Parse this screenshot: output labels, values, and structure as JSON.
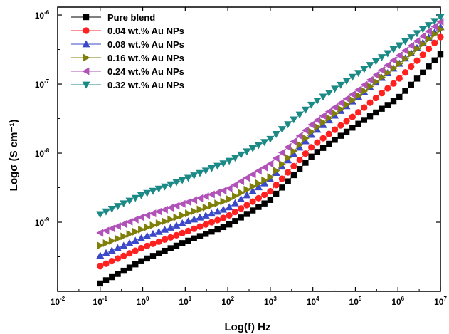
{
  "chart_data": {
    "type": "scatter",
    "xlabel": "Log(f) Hz",
    "ylabel": "Logσ (S cm⁻¹)",
    "x_scale": "log",
    "y_scale": "log",
    "xlim": [
      0.01,
      10000000
    ],
    "ylim": [
      1e-10,
      1.3e-06
    ],
    "x_ticks": [
      {
        "value": 0.01,
        "base": "10",
        "exp": "-2"
      },
      {
        "value": 0.1,
        "base": "10",
        "exp": "-1"
      },
      {
        "value": 1,
        "base": "10",
        "exp": "0"
      },
      {
        "value": 10,
        "base": "10",
        "exp": "1"
      },
      {
        "value": 100,
        "base": "10",
        "exp": "2"
      },
      {
        "value": 1000,
        "base": "10",
        "exp": "3"
      },
      {
        "value": 10000,
        "base": "10",
        "exp": "4"
      },
      {
        "value": 100000,
        "base": "10",
        "exp": "5"
      },
      {
        "value": 1000000,
        "base": "10",
        "exp": "6"
      },
      {
        "value": 10000000,
        "base": "10",
        "exp": "7"
      }
    ],
    "y_ticks": [
      {
        "value": 1e-09,
        "base": "10",
        "exp": "-9"
      },
      {
        "value": 1e-08,
        "base": "10",
        "exp": "-8"
      },
      {
        "value": 1e-07,
        "base": "10",
        "exp": "-7"
      },
      {
        "value": 1e-06,
        "base": "10",
        "exp": "-6"
      }
    ],
    "legend_position": "top-left",
    "grid": false,
    "series": [
      {
        "name": "Pure blend",
        "marker": "square",
        "color": "#000000",
        "anchors": [
          [
            0.1,
            1.3e-10
          ],
          [
            1,
            2.8e-10
          ],
          [
            10,
            5.2e-10
          ],
          [
            100,
            9e-10
          ],
          [
            1000,
            2.1e-09
          ],
          [
            10000,
            9.4e-09
          ],
          [
            100000,
            2.5e-08
          ],
          [
            1000000,
            6.2e-08
          ],
          [
            10000000,
            2.7e-07
          ]
        ]
      },
      {
        "name": "0.04 wt.% Au NPs",
        "marker": "circle",
        "color": "#ff2020",
        "anchors": [
          [
            0.1,
            2.3e-10
          ],
          [
            1,
            4.3e-10
          ],
          [
            10,
            7.2e-10
          ],
          [
            100,
            1.22e-09
          ],
          [
            1000,
            2.8e-09
          ],
          [
            10000,
            1.28e-08
          ],
          [
            100000,
            3.6e-08
          ],
          [
            1000000,
            1.15e-07
          ],
          [
            10000000,
            4.8e-07
          ]
        ]
      },
      {
        "name": "0.08 wt.% Au NPs",
        "marker": "triangle-up",
        "color": "#3b48c8",
        "anchors": [
          [
            0.1,
            3.3e-10
          ],
          [
            1,
            6e-10
          ],
          [
            10,
            1e-09
          ],
          [
            100,
            1.6e-09
          ],
          [
            1000,
            4.2e-09
          ],
          [
            10000,
            1.95e-08
          ],
          [
            100000,
            6.1e-08
          ],
          [
            1000000,
            1.9e-07
          ],
          [
            10000000,
            6.7e-07
          ]
        ]
      },
      {
        "name": "0.16 wt.% Au NPs",
        "marker": "triangle-right",
        "color": "#7f7f0a",
        "anchors": [
          [
            0.1,
            4.6e-10
          ],
          [
            1,
            8e-10
          ],
          [
            10,
            1.3e-09
          ],
          [
            100,
            2.1e-09
          ],
          [
            1000,
            4.5e-09
          ],
          [
            10000,
            2.15e-08
          ],
          [
            100000,
            6.3e-08
          ],
          [
            1000000,
            1.9e-07
          ],
          [
            10000000,
            6.2e-07
          ]
        ]
      },
      {
        "name": "0.24 wt.% Au NPs",
        "marker": "triangle-left",
        "color": "#b152b8",
        "anchors": [
          [
            0.1,
            7e-10
          ],
          [
            1,
            1.2e-09
          ],
          [
            10,
            1.9e-09
          ],
          [
            100,
            3e-09
          ],
          [
            1000,
            7e-09
          ],
          [
            10000,
            2.7e-08
          ],
          [
            100000,
            7.6e-08
          ],
          [
            1000000,
            2.5e-07
          ],
          [
            10000000,
            8e-07
          ]
        ]
      },
      {
        "name": "0.32 wt.% Au NPs",
        "marker": "triangle-down",
        "color": "#1b8a86",
        "anchors": [
          [
            0.1,
            1.3e-09
          ],
          [
            1,
            2.5e-09
          ],
          [
            10,
            4.2e-09
          ],
          [
            100,
            7.5e-09
          ],
          [
            1000,
            1.6e-08
          ],
          [
            10000,
            5.2e-08
          ],
          [
            100000,
            1.35e-07
          ],
          [
            1000000,
            3.5e-07
          ],
          [
            10000000,
            9.3e-07
          ]
        ]
      }
    ]
  }
}
